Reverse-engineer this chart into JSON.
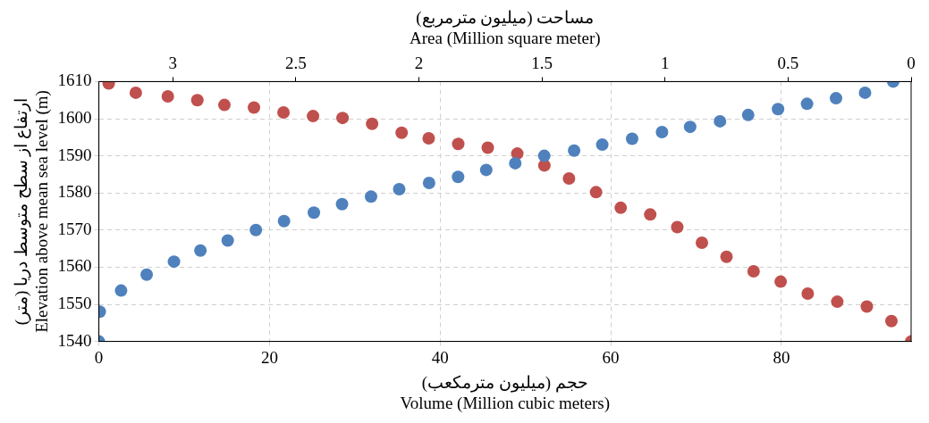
{
  "chart_data": {
    "type": "scatter",
    "xlabel": "حجم (میلیون مترمکعب)\nVolume (Million cubic meters)",
    "x2label": "مساحت (میلیون مترمربع)\nArea (Million square meter)",
    "ylabel": "ارتفاع از سطح متوسط دریا (متر)\nElevation above mean sea level (m)",
    "xlim": [
      0,
      95.2
    ],
    "xticks": [
      0,
      20,
      40,
      60,
      80
    ],
    "x2lim": [
      3.3,
      0
    ],
    "x2ticks": [
      3,
      2.5,
      2,
      1.5,
      1,
      0.5,
      0
    ],
    "ylim": [
      1540,
      1610
    ],
    "yticks": [
      1540,
      1550,
      1560,
      1570,
      1580,
      1590,
      1600,
      1610
    ],
    "grid": true,
    "legend": false,
    "marker": "circle",
    "series": [
      {
        "color": "#4f81bd",
        "x": [
          0,
          0.1,
          2.6,
          5.6,
          8.8,
          11.9,
          15.1,
          18.4,
          21.7,
          25.2,
          28.5,
          31.9,
          35.2,
          38.7,
          42.1,
          45.4,
          48.8,
          52.2,
          55.7,
          59.0,
          62.5,
          66.0,
          69.3,
          72.8,
          76.1,
          79.6,
          83.0,
          86.4,
          89.8,
          93.1
        ],
        "values": [
          1540,
          1548,
          1553.7,
          1558,
          1561.5,
          1564.5,
          1567.2,
          1570,
          1572.4,
          1574.7,
          1577,
          1579,
          1581,
          1582.7,
          1584.3,
          1586.2,
          1588,
          1590,
          1591.4,
          1593,
          1594.6,
          1596.4,
          1597.8,
          1599.3,
          1601,
          1602.6,
          1604,
          1605.5,
          1607,
          1610
        ]
      },
      {
        "color": "#c0504d",
        "axis": "x2",
        "x": [
          3.26,
          3.15,
          3.02,
          2.9,
          2.79,
          2.67,
          2.55,
          2.43,
          2.31,
          2.19,
          2.07,
          1.96,
          1.84,
          1.72,
          1.6,
          1.49,
          1.39,
          1.28,
          1.18,
          1.06,
          0.95,
          0.85,
          0.75,
          0.64,
          0.53,
          0.42,
          0.3,
          0.18,
          0.08,
          0
        ],
        "values": [
          1609.5,
          1607,
          1606,
          1605,
          1603.7,
          1603,
          1601.7,
          1600.7,
          1600.2,
          1598.6,
          1596.2,
          1594.7,
          1593.2,
          1592.2,
          1590.6,
          1587.4,
          1583.9,
          1580.2,
          1576,
          1574.2,
          1570.8,
          1566.6,
          1562.8,
          1558.9,
          1556.1,
          1552.9,
          1550.7,
          1549.4,
          1545.5,
          1540
        ]
      }
    ]
  }
}
